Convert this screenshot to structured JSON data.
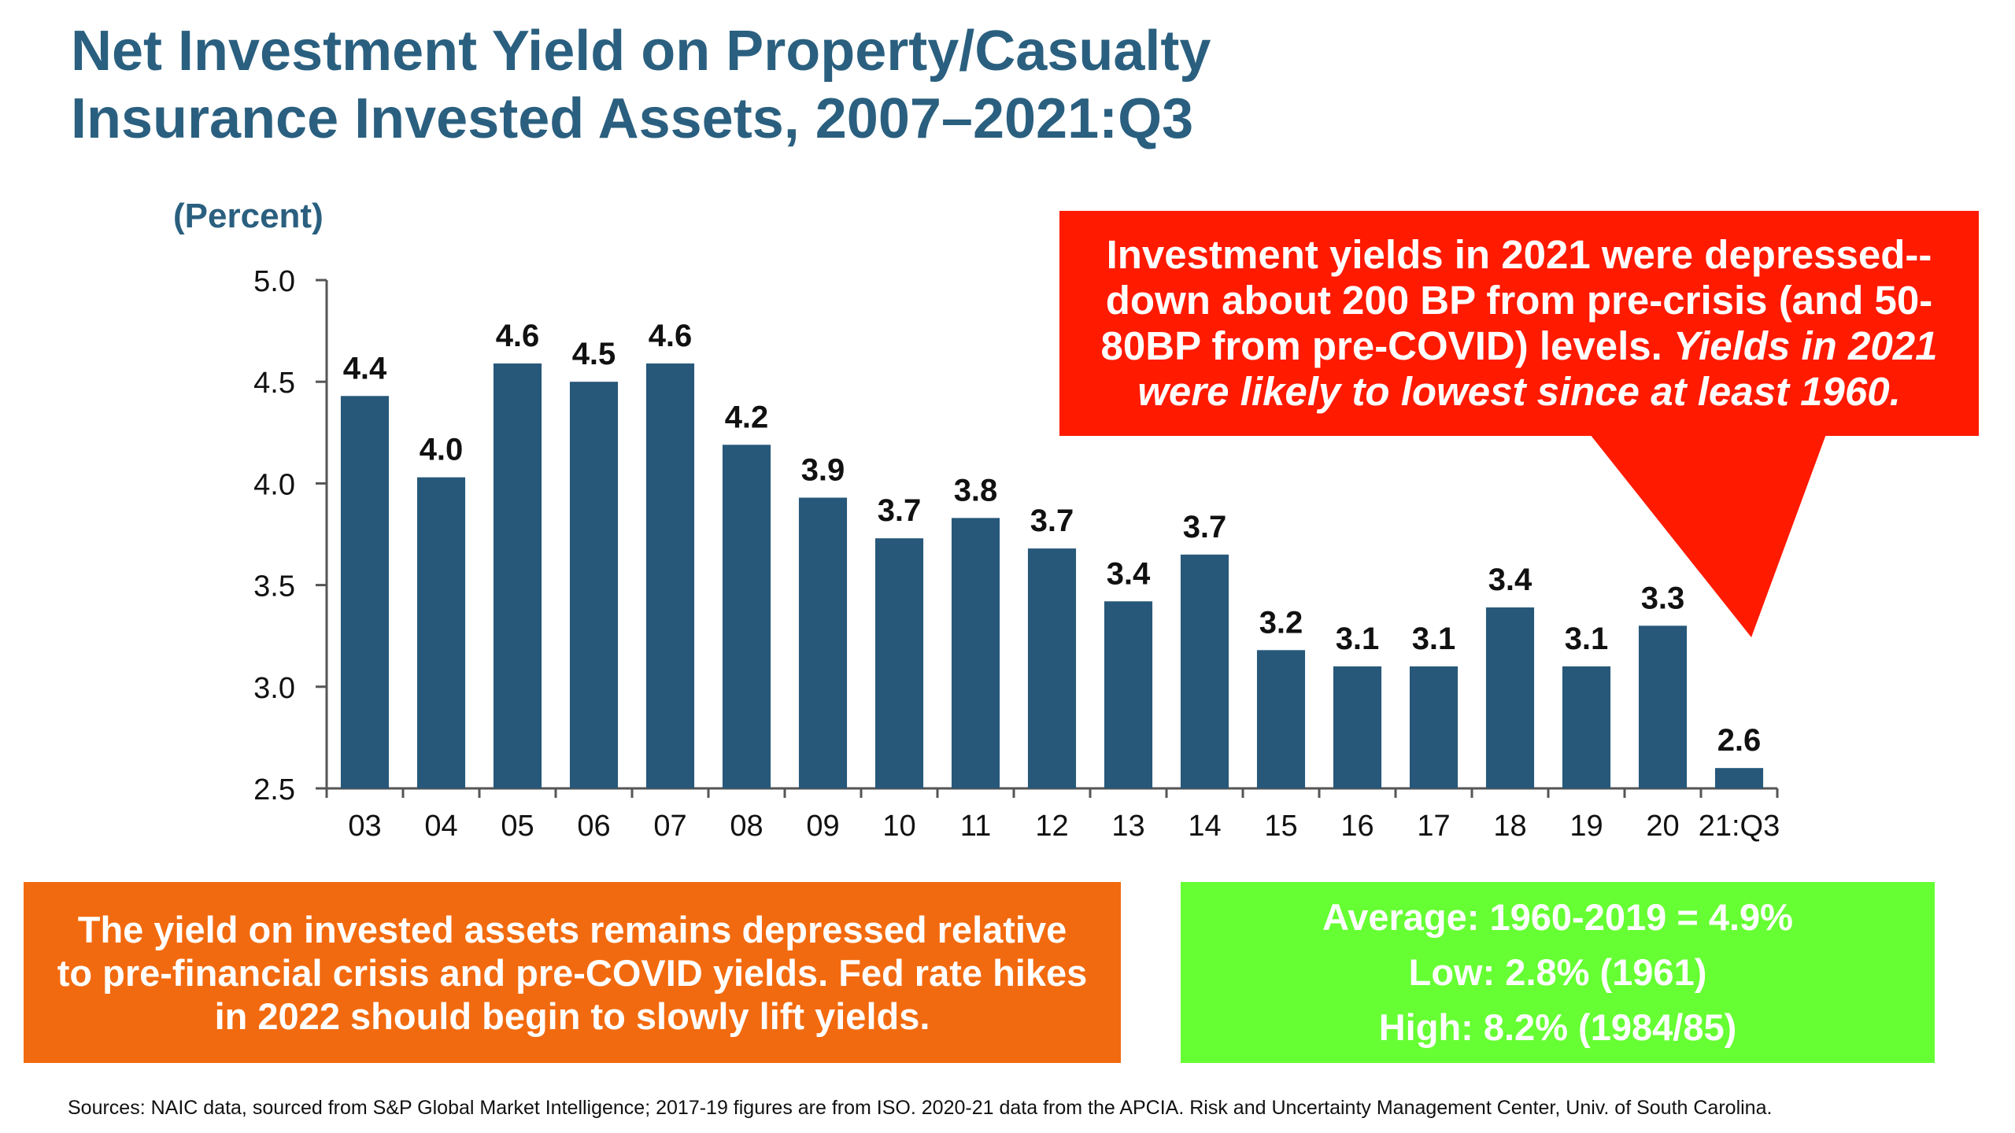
{
  "title": {
    "line1": "Net Investment Yield on Property/Casualty",
    "line2": "Insurance Invested Assets, 2007–2021:Q3"
  },
  "callout": {
    "line1": "Investment yields in 2021 were depressed--",
    "line2": "down about 200 BP from pre-crisis (and 50-",
    "line3_plain": "80BP from pre-COVID) levels.",
    "line3_italic": "Yields in 2021",
    "line4_italic": "were likely to lowest since at least 1960."
  },
  "orange_box": {
    "line1": "The yield on invested assets remains depressed relative",
    "line2": "to pre-financial crisis and pre-COVID yields. Fed rate hikes",
    "line3": "in 2022 should begin to slowly lift yields."
  },
  "green_box": {
    "line1": "Average: 1960-2019 = 4.9%",
    "line2": "Low: 2.8% (1961)",
    "line3": "High: 8.2% (1984/85)"
  },
  "sources": "Sources: NAIC data, sourced from S&P Global Market Intelligence; 2017-19 figures are from ISO.  2020-21 data from the APCIA. Risk and Uncertainty Management Center, Univ. of South Carolina.",
  "colors": {
    "title": "#2a5f7f",
    "bar": "#27587a",
    "callout": "#ff1a00",
    "orange_box": "#f26a0f",
    "green_box": "#66ff33"
  },
  "chart_data": {
    "type": "bar",
    "title": "Net Investment Yield on Property/Casualty Insurance Invested Assets, 2007–2021:Q3",
    "xlabel": "",
    "ylabel": "(Percent)",
    "ylim": [
      2.5,
      5.0
    ],
    "yticks": [
      "2.5",
      "3.0",
      "3.5",
      "4.0",
      "4.5",
      "5.0"
    ],
    "grid": false,
    "categories": [
      "03",
      "04",
      "05",
      "06",
      "07",
      "08",
      "09",
      "10",
      "11",
      "12",
      "13",
      "14",
      "15",
      "16",
      "17",
      "18",
      "19",
      "20",
      "21:Q3"
    ],
    "values": [
      4.43,
      4.03,
      4.59,
      4.5,
      4.59,
      4.19,
      3.93,
      3.73,
      3.83,
      3.68,
      3.42,
      3.65,
      3.18,
      3.1,
      3.1,
      3.39,
      3.1,
      3.3,
      2.6
    ],
    "data_labels": [
      "4.4",
      "4.0",
      "4.6",
      "4.5",
      "4.6",
      "4.2",
      "3.9",
      "3.7",
      "3.8",
      "3.7",
      "3.4",
      "3.7",
      "3.2",
      "3.1",
      "3.1",
      "3.4",
      "3.1",
      "3.3",
      "2.6"
    ]
  }
}
